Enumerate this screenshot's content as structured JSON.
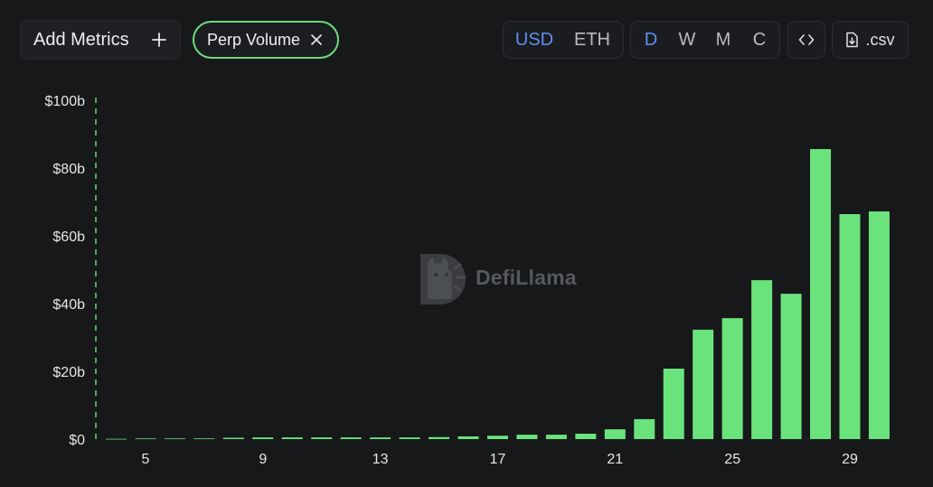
{
  "toolbar": {
    "add_metrics": {
      "label": "Add Metrics",
      "icon": "plus-icon"
    },
    "metric_pill": {
      "label": "Perp Volume",
      "icon": "close-icon"
    },
    "currency": {
      "options": [
        "USD",
        "ETH"
      ],
      "active": "USD"
    },
    "interval": {
      "options": [
        "D",
        "W",
        "M",
        "C"
      ],
      "active": "D"
    },
    "embed": {
      "icon": "code-icon"
    },
    "csv": {
      "label": ".csv",
      "icon": "download-icon"
    }
  },
  "watermark": {
    "text": "DefiLlama",
    "icon": "defillama-logo-icon"
  },
  "colors": {
    "background": "#16181a",
    "bar": "#6be37c",
    "pill_border": "#6ddc7c",
    "active_toggle": "#5f8ff0",
    "inactive_toggle": "#b9bcc1",
    "axis_marker": "#5bd36b"
  },
  "chart_data": {
    "type": "bar",
    "x": [
      4,
      5,
      6,
      7,
      8,
      9,
      10,
      11,
      12,
      13,
      14,
      15,
      16,
      17,
      18,
      19,
      20,
      21,
      22,
      23,
      24,
      25,
      26,
      27,
      28,
      29,
      30
    ],
    "values": [
      0.1,
      0.2,
      0.2,
      0.2,
      0.4,
      0.5,
      0.5,
      0.5,
      0.5,
      0.5,
      0.5,
      0.6,
      0.8,
      1.0,
      1.3,
      1.3,
      1.6,
      2.9,
      5.9,
      20.8,
      32.3,
      35.7,
      46.9,
      42.9,
      85.6,
      66.4,
      67.2
    ],
    "x_range": [
      4,
      30
    ],
    "x_ticks": [
      5,
      9,
      13,
      17,
      21,
      25,
      29
    ],
    "y_ticks": [
      0,
      20,
      40,
      60,
      80,
      100
    ],
    "y_tick_labels": [
      "$0",
      "$20b",
      "$40b",
      "$60b",
      "$80b",
      "$100b"
    ],
    "ylim": [
      0,
      100
    ],
    "grid": false,
    "legend": "none"
  }
}
